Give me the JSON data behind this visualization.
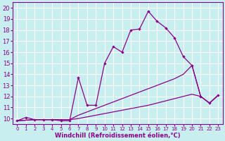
{
  "title": "",
  "xlabel": "Windchill (Refroidissement éolien,°C)",
  "ylabel": "",
  "bg_color": "#c8eef0",
  "line_color": "#8b008b",
  "grid_color": "#ffffff",
  "xlim": [
    -0.5,
    23.5
  ],
  "ylim": [
    9.5,
    20.5
  ],
  "xticks": [
    0,
    1,
    2,
    3,
    4,
    5,
    6,
    7,
    8,
    9,
    10,
    11,
    12,
    13,
    14,
    15,
    16,
    17,
    18,
    19,
    20,
    21,
    22,
    23
  ],
  "yticks": [
    10,
    11,
    12,
    13,
    14,
    15,
    16,
    17,
    18,
    19,
    20
  ],
  "curve1_x": [
    0,
    1,
    2,
    3,
    4,
    5,
    6,
    7,
    8,
    9,
    10,
    11,
    12,
    13,
    14,
    15,
    16,
    17,
    18,
    19,
    20,
    21,
    22,
    23
  ],
  "curve1_y": [
    9.8,
    10.1,
    9.9,
    9.9,
    9.9,
    9.8,
    9.8,
    13.7,
    11.2,
    11.2,
    15.0,
    16.5,
    16.0,
    18.0,
    18.1,
    19.7,
    18.8,
    18.2,
    17.3,
    15.6,
    14.8,
    12.0,
    11.4,
    12.1
  ],
  "curve2_x": [
    0,
    2,
    3,
    4,
    5,
    6,
    7,
    8,
    9,
    10,
    11,
    12,
    13,
    14,
    15,
    16,
    17,
    18,
    19,
    20,
    21,
    22,
    23
  ],
  "curve2_y": [
    9.8,
    9.9,
    9.9,
    9.9,
    9.9,
    9.9,
    10.3,
    10.6,
    10.9,
    11.2,
    11.5,
    11.8,
    12.1,
    12.4,
    12.7,
    13.0,
    13.3,
    13.6,
    14.0,
    14.8,
    12.0,
    11.4,
    12.1
  ],
  "curve3_x": [
    0,
    2,
    3,
    4,
    5,
    6,
    7,
    8,
    9,
    10,
    11,
    12,
    13,
    14,
    15,
    16,
    17,
    18,
    19,
    20,
    21,
    22,
    23
  ],
  "curve3_y": [
    9.8,
    9.9,
    9.9,
    9.9,
    9.9,
    9.9,
    10.0,
    10.15,
    10.3,
    10.45,
    10.6,
    10.75,
    10.9,
    11.05,
    11.2,
    11.4,
    11.6,
    11.8,
    12.0,
    12.2,
    12.0,
    11.4,
    12.1
  ],
  "xlabel_fontsize": 6.0,
  "ytick_fontsize": 6.0,
  "xtick_fontsize": 5.0
}
